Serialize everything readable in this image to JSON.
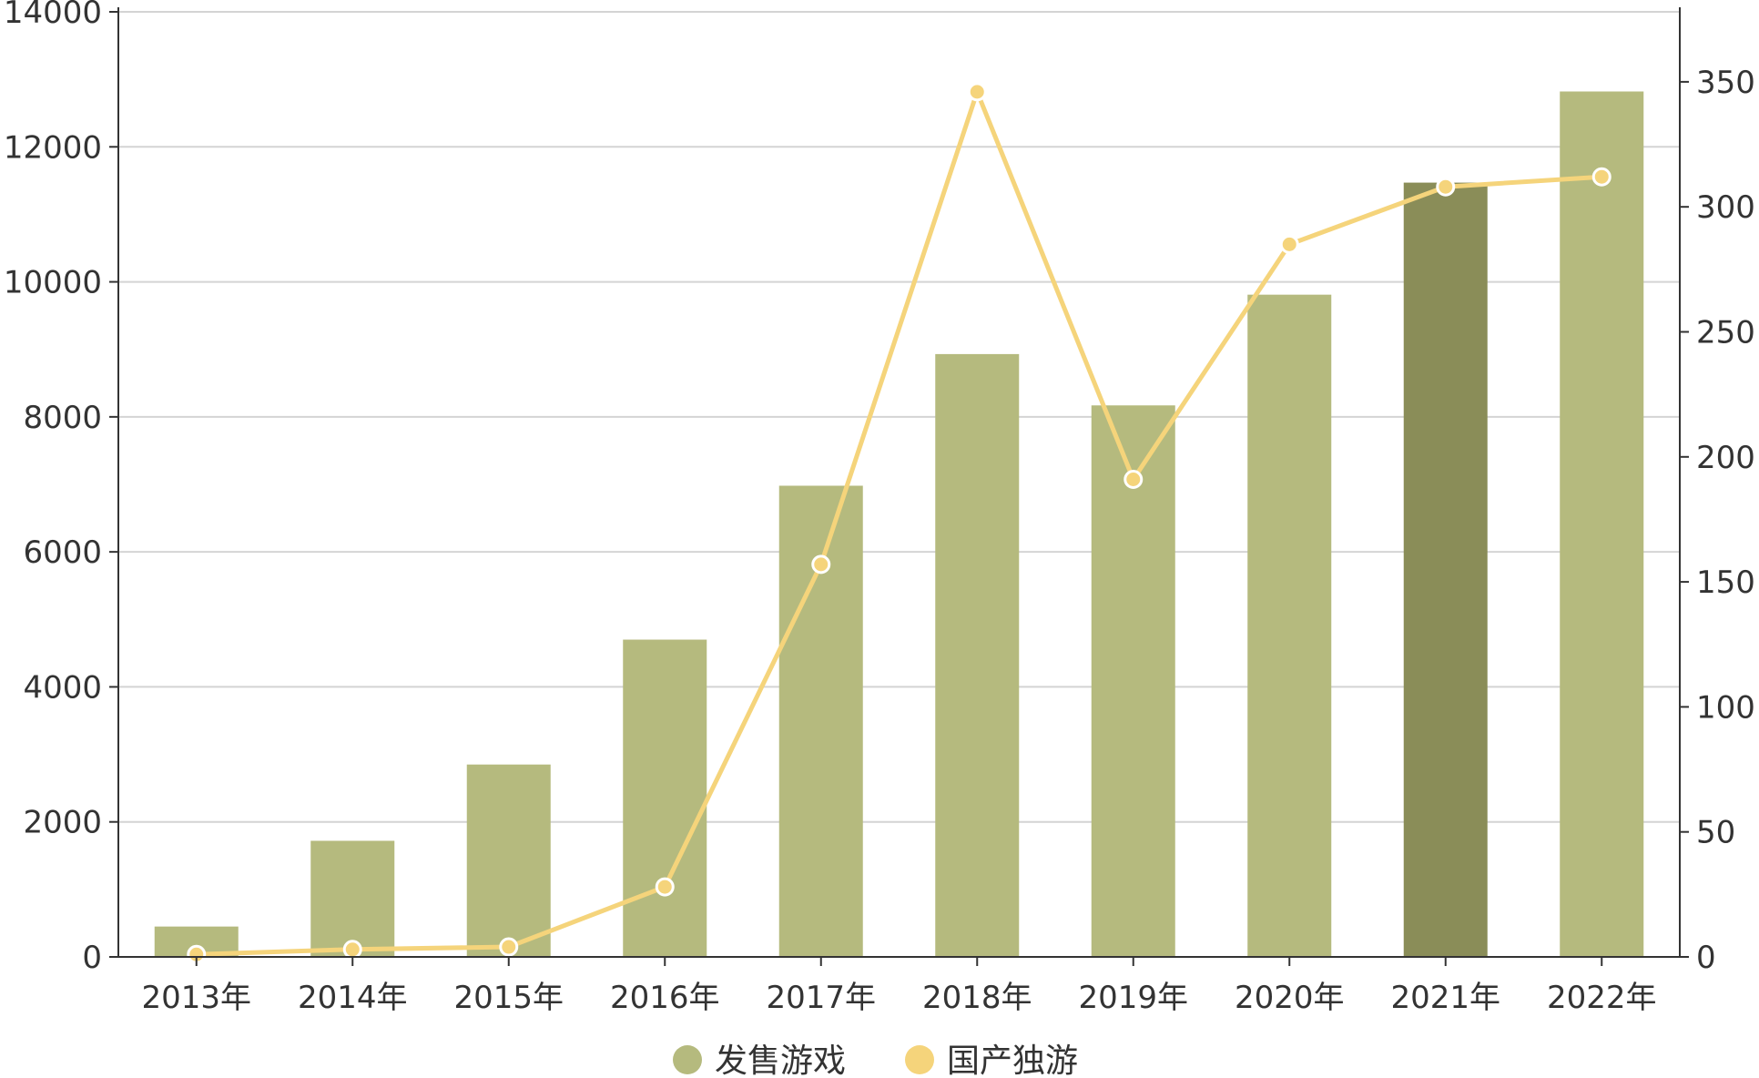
{
  "chart_data": {
    "type": "bar",
    "categories": [
      "2013年",
      "2014年",
      "2015年",
      "2016年",
      "2017年",
      "2018年",
      "2019年",
      "2020年",
      "2021年",
      "2022年"
    ],
    "series": [
      {
        "name": "发售游戏",
        "type": "bar",
        "axis": "left",
        "values": [
          450,
          1720,
          2850,
          4700,
          6980,
          8930,
          8170,
          9810,
          11470,
          12820
        ],
        "color": "#b5ba7e",
        "highlight_color": "#8a8d58",
        "highlight_index": 8
      },
      {
        "name": "国产独游",
        "type": "line",
        "axis": "right",
        "values": [
          1,
          3,
          4,
          28,
          157,
          346,
          191,
          285,
          308,
          312
        ],
        "color": "#f5d47b"
      }
    ],
    "y_left": {
      "min": 0,
      "max": 14000,
      "ticks": [
        0,
        2000,
        4000,
        6000,
        8000,
        10000,
        12000,
        14000
      ]
    },
    "y_right": {
      "min": 0,
      "max": 378,
      "ticks": [
        0,
        50,
        100,
        150,
        200,
        250,
        300,
        350
      ]
    },
    "grid": true,
    "legend": "bottom",
    "xlabel": "",
    "ylabel": "",
    "title": ""
  },
  "legend": [
    {
      "label": "发售游戏",
      "color": "#b5ba7e"
    },
    {
      "label": "国产独游",
      "color": "#f5d47b"
    }
  ]
}
